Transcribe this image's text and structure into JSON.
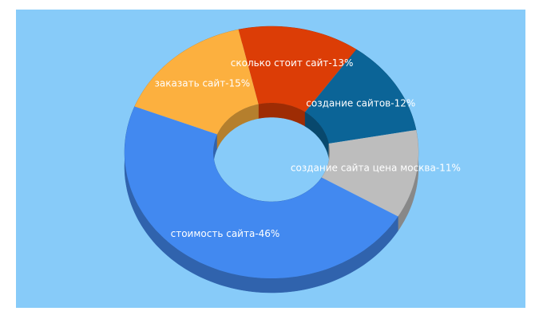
{
  "chart_data": {
    "type": "donut3d",
    "values": [
      13,
      12,
      11,
      46,
      15
    ],
    "value_labels": [
      "сколько стоит сайт-13%",
      "создание сайтов-12%",
      "создание сайта цена москва-11%",
      "стоимость сайта-46%",
      "заказать сайт-15%"
    ],
    "colors": [
      "#dc3d06",
      "#0b6497",
      "#bdbdbd",
      "#4289f0",
      "#fcb03f"
    ]
  }
}
